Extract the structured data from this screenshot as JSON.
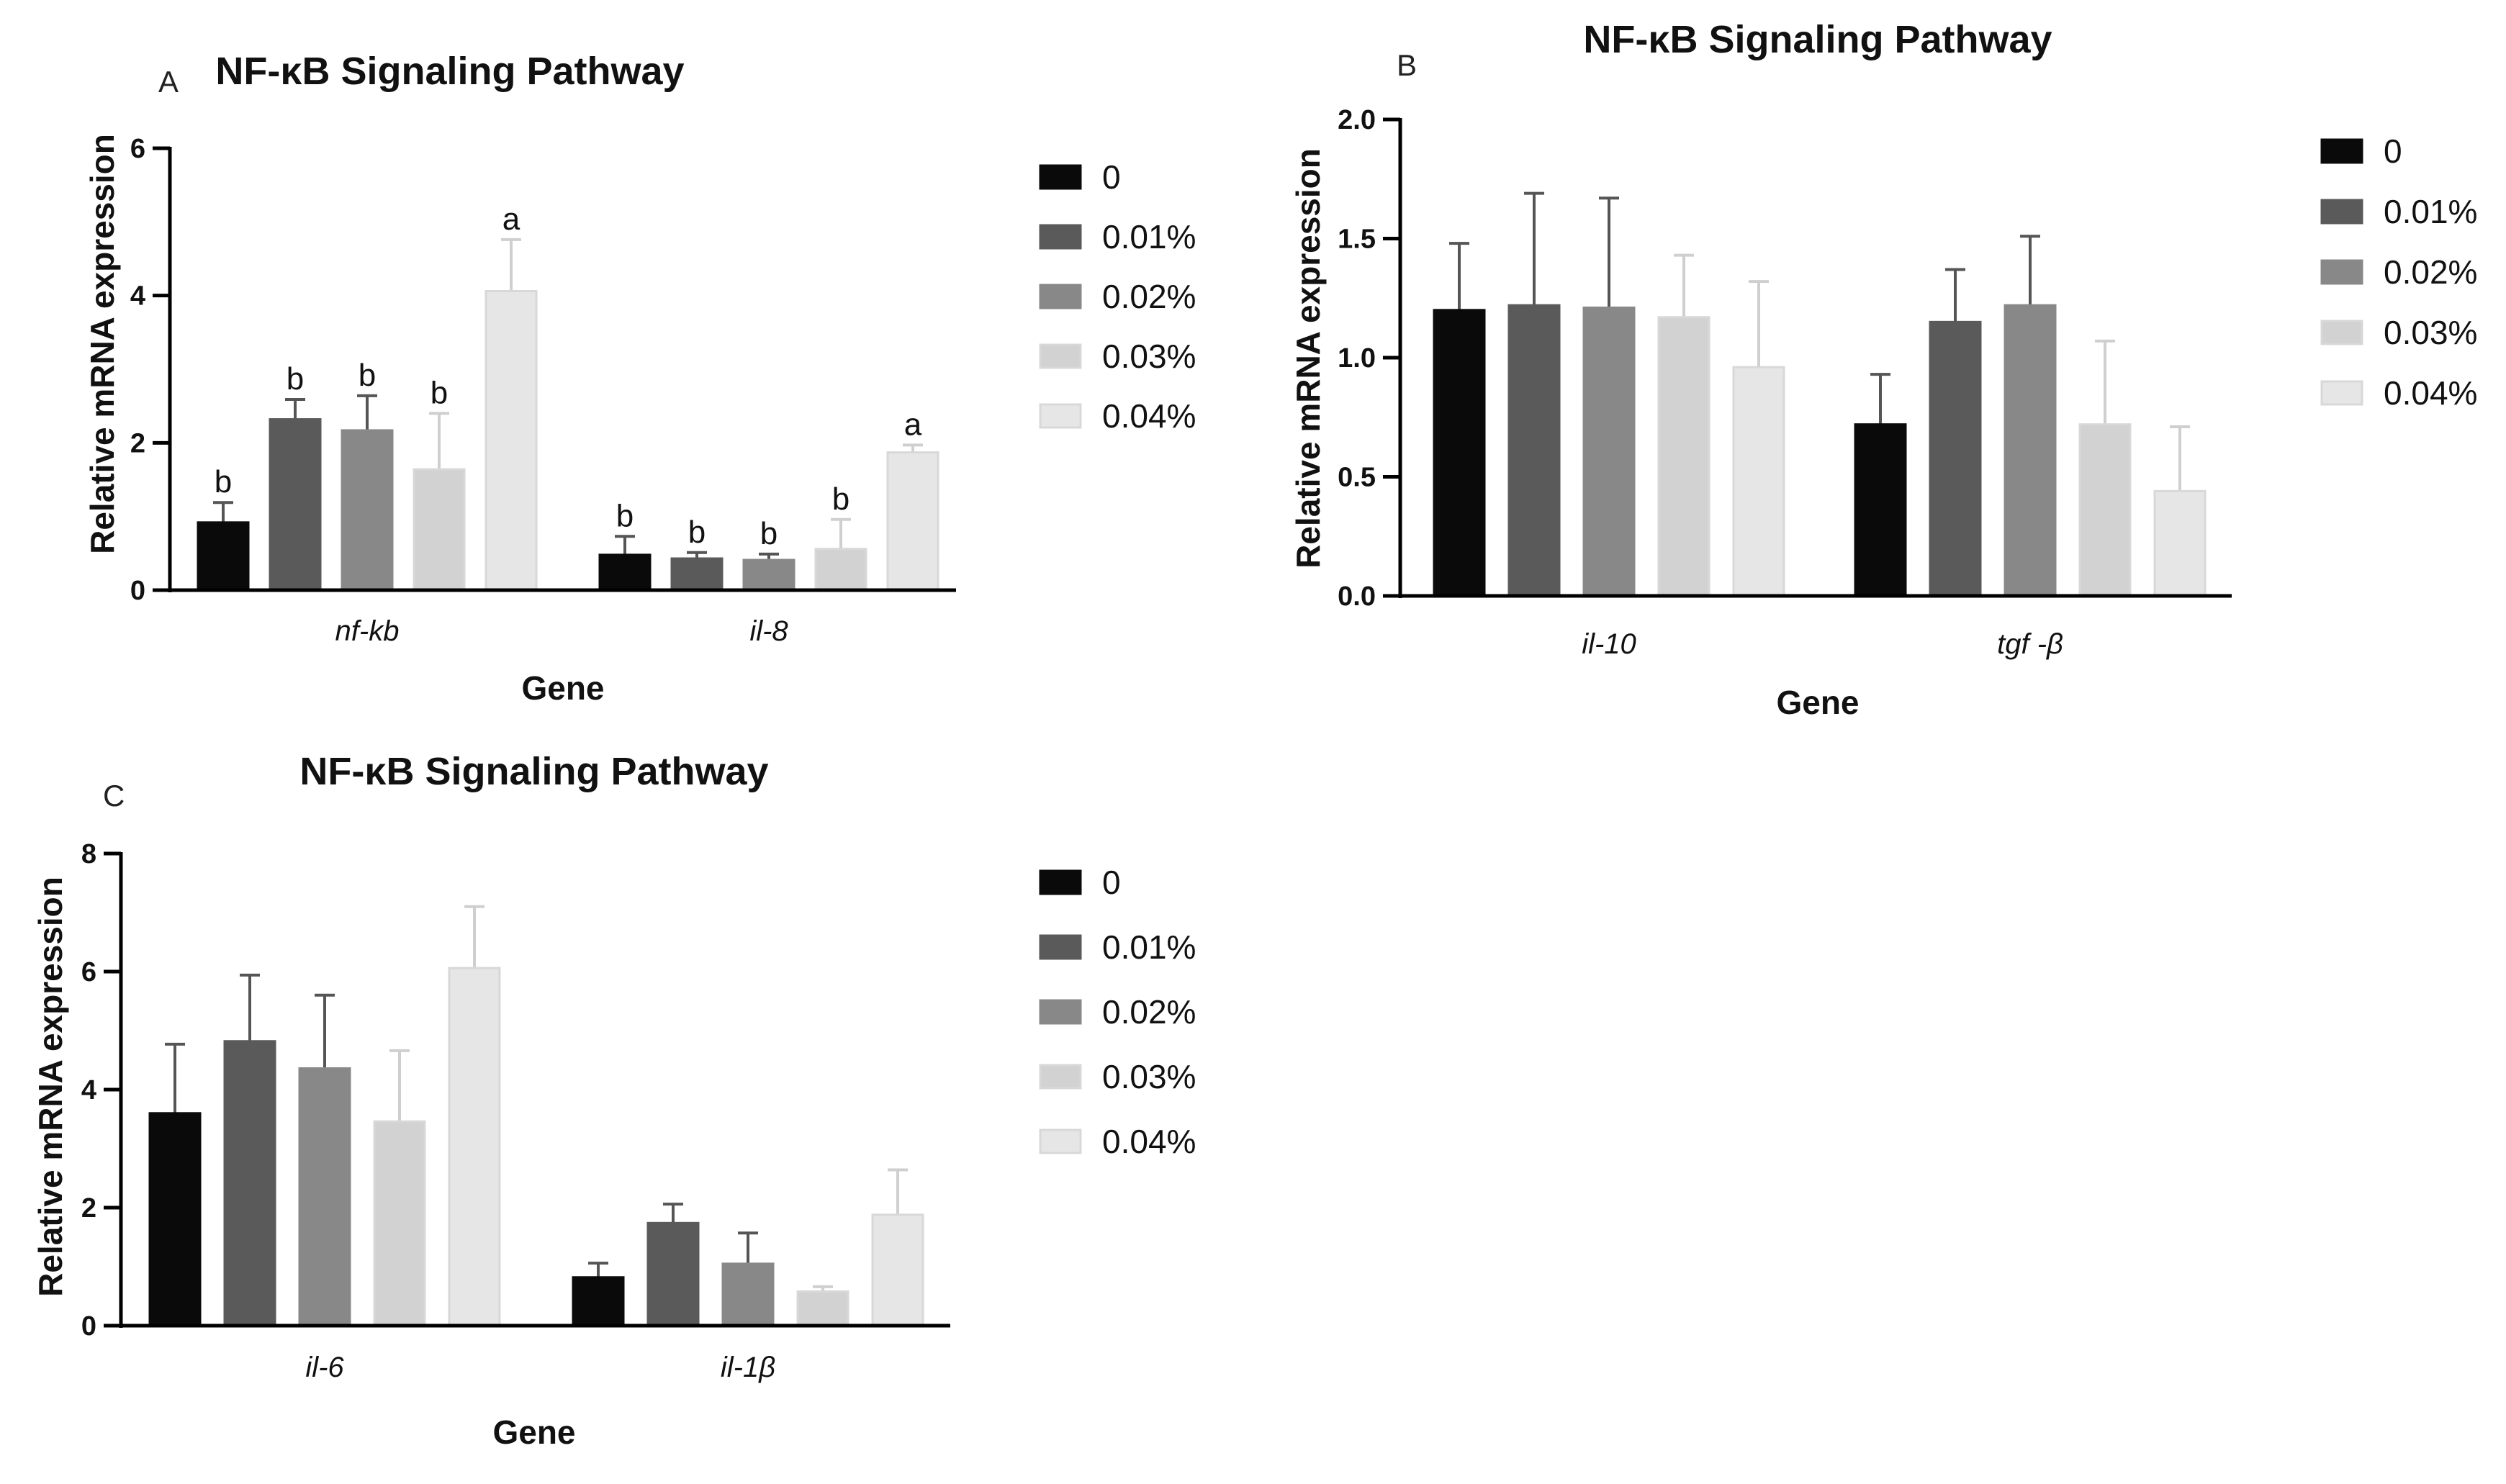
{
  "figure": {
    "series_names": [
      "0",
      "0.01%",
      "0.02%",
      "0.03%",
      "0.04%"
    ],
    "series_colors": [
      "#0a0a0a",
      "#5a5a5a",
      "#888888",
      "#d2d2d2",
      "#e6e6e6"
    ]
  },
  "chart_data": [
    {
      "type": "bar",
      "panel": "A",
      "title": "NF-κB Signaling Pathway",
      "xlabel": "Gene",
      "ylabel": "Relative mRNA expression",
      "categories": [
        "nf-kb",
        "il-8"
      ],
      "ylim": [
        0,
        6
      ],
      "yticks": [
        "0",
        "2",
        "4",
        "6"
      ],
      "series": [
        {
          "name": "0",
          "values": [
            0.92,
            0.48
          ],
          "errors": [
            0.27,
            0.25
          ],
          "letters": [
            "b",
            "b"
          ]
        },
        {
          "name": "0.01%",
          "values": [
            2.32,
            0.43
          ],
          "errors": [
            0.27,
            0.08
          ],
          "letters": [
            "b",
            "b"
          ]
        },
        {
          "name": "0.02%",
          "values": [
            2.17,
            0.41
          ],
          "errors": [
            0.47,
            0.08
          ],
          "letters": [
            "b",
            "b"
          ]
        },
        {
          "name": "0.03%",
          "values": [
            1.64,
            0.56
          ],
          "errors": [
            0.76,
            0.4
          ],
          "letters": [
            "b",
            "b"
          ]
        },
        {
          "name": "0.04%",
          "values": [
            4.06,
            1.87
          ],
          "errors": [
            0.7,
            0.1
          ],
          "letters": [
            "a",
            "a"
          ]
        }
      ]
    },
    {
      "type": "bar",
      "panel": "B",
      "title": "NF-κB Signaling Pathway",
      "xlabel": "Gene",
      "ylabel": "Relative mRNA expression",
      "categories": [
        "il-10",
        "tgf -β"
      ],
      "ylim": [
        0,
        2
      ],
      "yticks": [
        "0.0",
        "0.5",
        "1.0",
        "1.5",
        "2.0"
      ],
      "series": [
        {
          "name": "0",
          "values": [
            1.2,
            0.72
          ],
          "errors": [
            0.28,
            0.21
          ]
        },
        {
          "name": "0.01%",
          "values": [
            1.22,
            1.15
          ],
          "errors": [
            0.47,
            0.22
          ]
        },
        {
          "name": "0.02%",
          "values": [
            1.21,
            1.22
          ],
          "errors": [
            0.46,
            0.29
          ]
        },
        {
          "name": "0.03%",
          "values": [
            1.17,
            0.72
          ],
          "errors": [
            0.26,
            0.35
          ]
        },
        {
          "name": "0.04%",
          "values": [
            0.96,
            0.44
          ],
          "errors": [
            0.36,
            0.27
          ]
        }
      ]
    },
    {
      "type": "bar",
      "panel": "C",
      "title": "NF-κB Signaling Pathway",
      "xlabel": "Gene",
      "ylabel": "Relative mRNA expression",
      "categories": [
        "il-6",
        "il-1β"
      ],
      "ylim": [
        0,
        8
      ],
      "yticks": [
        "0",
        "2",
        "4",
        "6",
        "8"
      ],
      "series": [
        {
          "name": "0",
          "values": [
            3.6,
            0.82
          ],
          "errors": [
            1.17,
            0.24
          ]
        },
        {
          "name": "0.01%",
          "values": [
            4.82,
            1.74
          ],
          "errors": [
            1.12,
            0.32
          ]
        },
        {
          "name": "0.02%",
          "values": [
            4.36,
            1.05
          ],
          "errors": [
            1.24,
            0.52
          ]
        },
        {
          "name": "0.03%",
          "values": [
            3.46,
            0.58
          ],
          "errors": [
            1.2,
            0.08
          ]
        },
        {
          "name": "0.04%",
          "values": [
            6.06,
            1.88
          ],
          "errors": [
            1.04,
            0.76
          ]
        }
      ]
    }
  ]
}
